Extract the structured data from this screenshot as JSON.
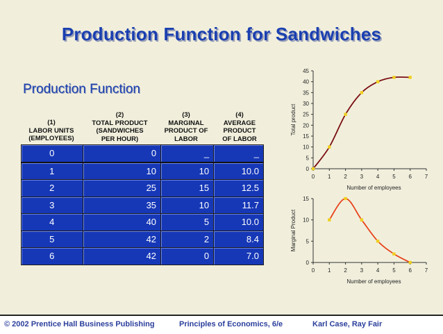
{
  "title": "Production Function for Sandwiches",
  "subtitle": "Production Function",
  "table": {
    "headers": [
      [
        "(1)",
        "LABOR UNITS",
        "(EMPLOYEES)"
      ],
      [
        "(2)",
        "TOTAL PRODUCT",
        "(SANDWICHES",
        "PER HOUR)"
      ],
      [
        "(3)",
        "MARGINAL",
        "PRODUCT OF",
        "LABOR"
      ],
      [
        "(4)",
        "AVERAGE",
        "PRODUCT",
        "OF LABOR"
      ]
    ],
    "rows": [
      [
        "0",
        "0",
        "_",
        "_"
      ],
      [
        "1",
        "10",
        "10",
        "10.0"
      ],
      [
        "2",
        "25",
        "15",
        "12.5"
      ],
      [
        "3",
        "35",
        "10",
        "11.7"
      ],
      [
        "4",
        "40",
        "5",
        "10.0"
      ],
      [
        "5",
        "42",
        "2",
        "8.4"
      ],
      [
        "6",
        "42",
        "0",
        "7.0"
      ]
    ]
  },
  "chart_data": [
    {
      "type": "line",
      "x": [
        0,
        1,
        2,
        3,
        4,
        5,
        6
      ],
      "series": [
        {
          "values": [
            0,
            10,
            25,
            35,
            40,
            42,
            42
          ]
        }
      ],
      "xlabel": "Number of employees",
      "ylabel": "Total product",
      "xlim": [
        0,
        7
      ],
      "ylim": [
        0,
        45
      ],
      "xticks": [
        "0",
        "1",
        "2",
        "3",
        "4",
        "5",
        "6",
        "7"
      ],
      "yticks": [
        "0",
        "5",
        "10",
        "15",
        "20",
        "25",
        "30",
        "35",
        "40",
        "45"
      ],
      "line_color": "#7a0d10",
      "marker_color": "#f0d020",
      "grid": false
    },
    {
      "type": "line",
      "x": [
        1,
        2,
        3,
        4,
        5,
        6
      ],
      "series": [
        {
          "values": [
            10,
            15,
            10,
            5,
            2,
            0
          ]
        }
      ],
      "xlabel": "Number of employees",
      "ylabel": "Marginal Product",
      "xlim": [
        0,
        7
      ],
      "ylim": [
        0,
        15
      ],
      "xticks": [
        "0",
        "1",
        "2",
        "3",
        "4",
        "5",
        "6",
        "7"
      ],
      "yticks": [
        "0",
        "5",
        "10",
        "15"
      ],
      "line_color": "#e8421a",
      "marker_color": "#f0d020",
      "grid": false
    }
  ],
  "footer": {
    "left": "© 2002 Prentice Hall Business Publishing",
    "center": "Principles of Economics, 6/e",
    "right": "Karl Case, Ray Fair"
  }
}
